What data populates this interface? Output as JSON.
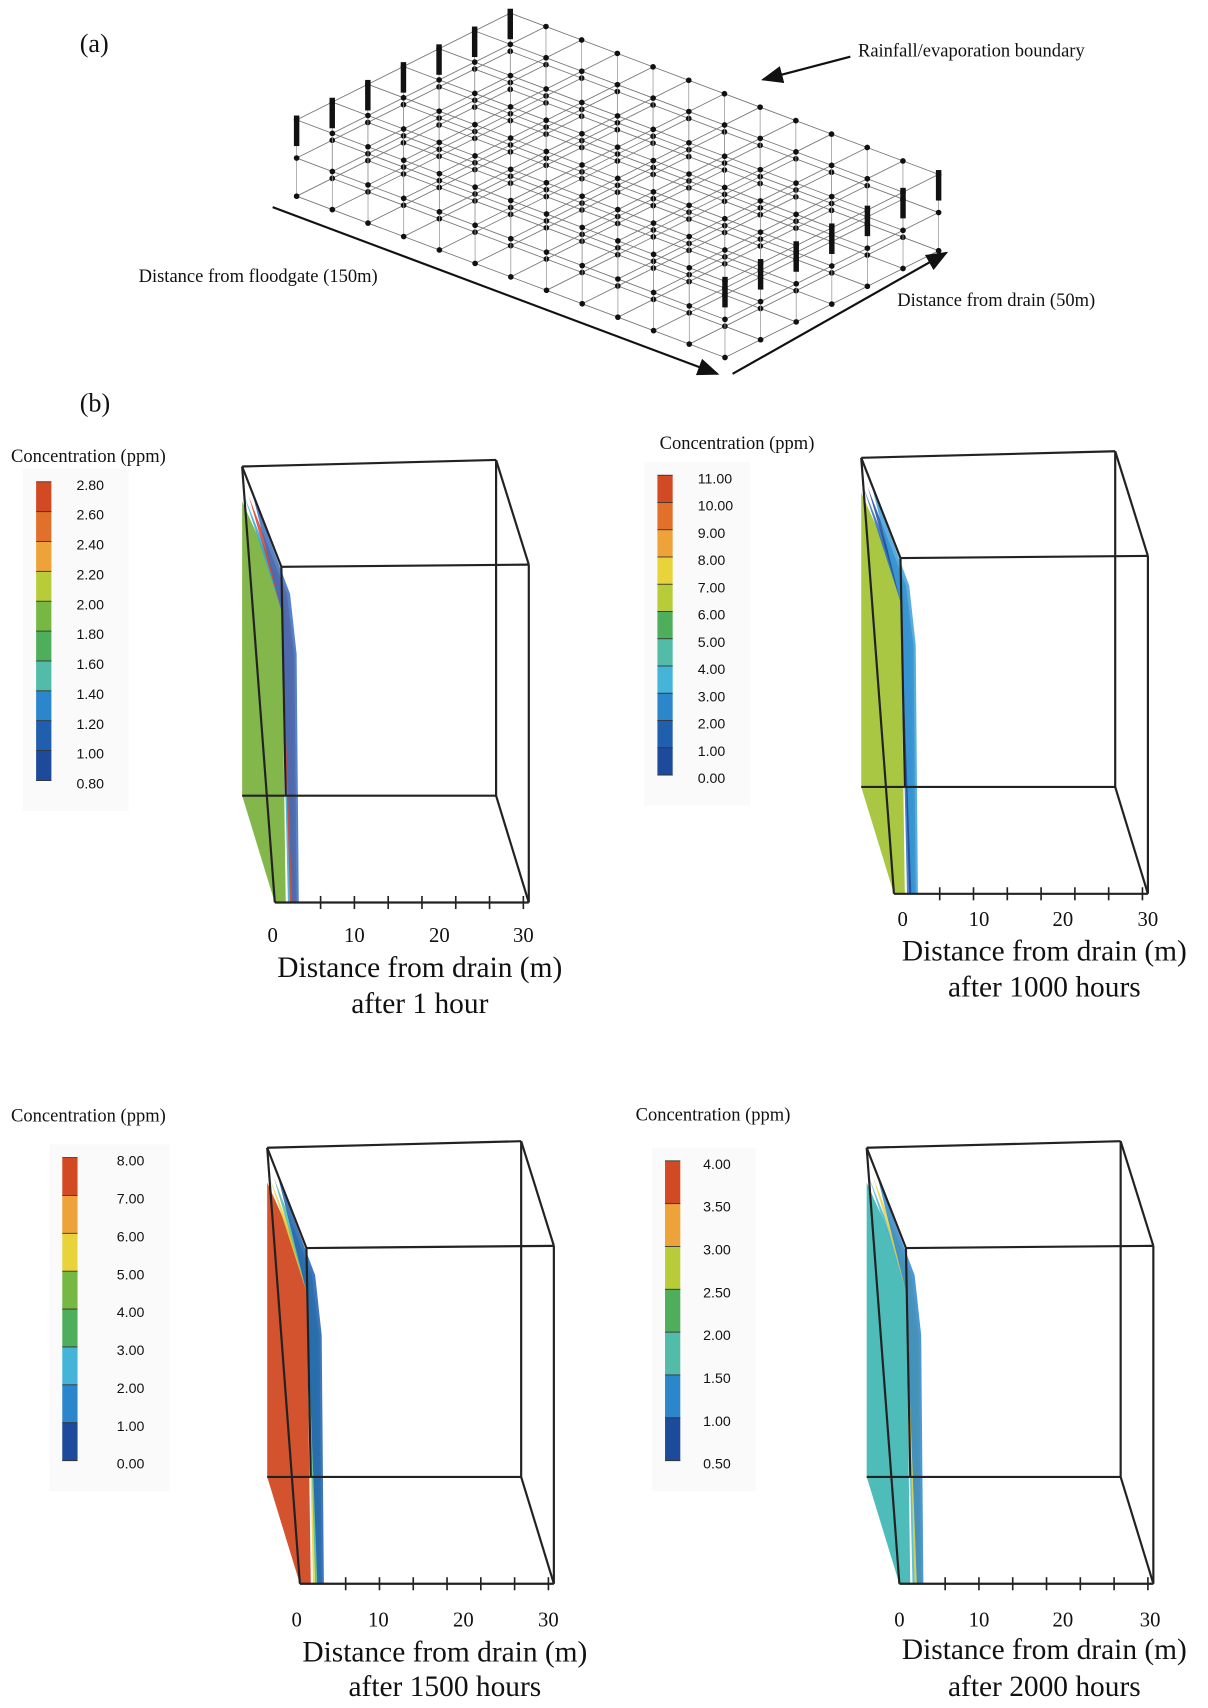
{
  "panel_a": {
    "label": "(a)",
    "boundary_label": "Rainfall/evaporation boundary",
    "floodgate_label": "Distance from floodgate (150m)",
    "drain_label": "Distance from drain (50m)"
  },
  "panel_b": {
    "label": "(b)",
    "plots": [
      {
        "legend_title": "Concentration (ppm)",
        "legend_ticks": [
          "2.80",
          "2.60",
          "2.40",
          "2.20",
          "2.00",
          "1.80",
          "1.60",
          "1.40",
          "1.20",
          "1.00",
          "0.80"
        ],
        "x_ticks": [
          "0",
          "10",
          "20",
          "30"
        ],
        "x_label": "Distance from drain (m)",
        "caption": "after 1 hour"
      },
      {
        "legend_title": "Concentration (ppm)",
        "legend_ticks": [
          "11.00",
          "10.00",
          "9.00",
          "8.00",
          "7.00",
          "6.00",
          "5.00",
          "4.00",
          "3.00",
          "2.00",
          "1.00",
          "0.00"
        ],
        "x_ticks": [
          "0",
          "10",
          "20",
          "30"
        ],
        "x_label": "Distance from drain (m)",
        "caption": "after 1000 hours"
      },
      {
        "legend_title": "Concentration (ppm)",
        "legend_ticks": [
          "8.00",
          "7.00",
          "6.00",
          "5.00",
          "4.00",
          "3.00",
          "2.00",
          "1.00",
          "0.00"
        ],
        "x_ticks": [
          "0",
          "10",
          "20",
          "30"
        ],
        "x_label": "Distance from drain (m)",
        "caption": "after 1500 hours"
      },
      {
        "legend_title": "Concentration (ppm)",
        "legend_ticks": [
          "4.00",
          "3.50",
          "3.00",
          "2.50",
          "2.00",
          "1.50",
          "1.00",
          "0.50"
        ],
        "x_ticks": [
          "0",
          "10",
          "20",
          "30"
        ],
        "x_label": "Distance from drain (m)",
        "caption": "after 2000 hours"
      }
    ]
  }
}
